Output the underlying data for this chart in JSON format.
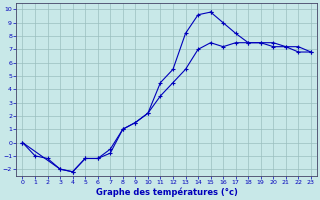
{
  "xlabel": "Graphe des températures (°c)",
  "xlim": [
    -0.5,
    23.5
  ],
  "ylim": [
    -2.5,
    10.5
  ],
  "xticks": [
    0,
    1,
    2,
    3,
    4,
    5,
    6,
    7,
    8,
    9,
    10,
    11,
    12,
    13,
    14,
    15,
    16,
    17,
    18,
    19,
    20,
    21,
    22,
    23
  ],
  "yticks": [
    -2,
    -1,
    0,
    1,
    2,
    3,
    4,
    5,
    6,
    7,
    8,
    9,
    10
  ],
  "bg_color": "#c8e8e8",
  "grid_color": "#9bbfbf",
  "line_color": "#0000bb",
  "curve1_x": [
    0,
    1,
    2,
    3,
    4,
    5,
    6,
    7,
    8,
    9,
    10,
    11,
    12,
    13,
    14,
    15
  ],
  "curve1_y": [
    0,
    -1,
    -1.2,
    -2,
    -2.2,
    -1.2,
    -1.2,
    -0.8,
    1.0,
    1.5,
    2.2,
    4.5,
    5.5,
    8.2,
    9.6,
    9.8
  ],
  "curve2_x": [
    15,
    16,
    17,
    18,
    19,
    20,
    21,
    22,
    23
  ],
  "curve2_y": [
    9.8,
    9.0,
    8.2,
    7.5,
    7.5,
    7.5,
    7.2,
    7.2,
    6.8
  ],
  "curve3_x": [
    0,
    3,
    4,
    5,
    6,
    7,
    8,
    9,
    10,
    11,
    12,
    13,
    14,
    15,
    16,
    17,
    18,
    19,
    20,
    21,
    22,
    23
  ],
  "curve3_y": [
    0,
    -2,
    -2.2,
    -1.2,
    -1.2,
    -0.5,
    1.0,
    1.5,
    2.2,
    3.5,
    4.5,
    5.5,
    7.0,
    7.5,
    7.2,
    7.5,
    7.5,
    7.5,
    7.2,
    7.2,
    6.8,
    6.8
  ]
}
